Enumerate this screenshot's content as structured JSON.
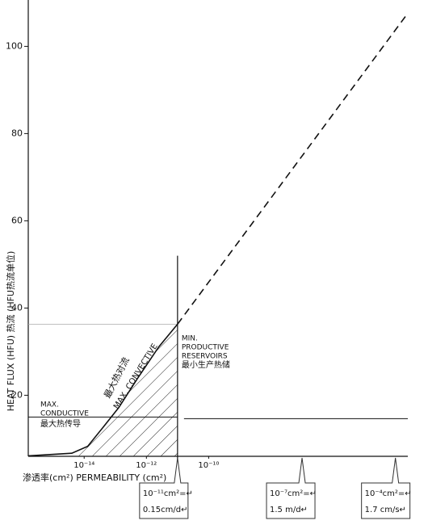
{
  "chart_data": {
    "type": "line",
    "x_label": "渗透率(cm²) PERMEABILITY (cm²)",
    "y_label": "HEAT FLUX (HFU) 热流 (HFU热流单位)",
    "x_log": true,
    "xlim": [
      1.6e-16,
      0.00025
    ],
    "ylim": [
      6,
      110
    ],
    "xticks": [
      {
        "value": 1e-14,
        "label": "10⁻¹⁴"
      },
      {
        "value": 1e-12,
        "label": "10⁻¹²"
      },
      {
        "value": 1e-10,
        "label": "10⁻¹⁰"
      }
    ],
    "yticks": [
      20,
      40,
      60,
      80,
      100
    ],
    "series": [
      {
        "color": "#111111",
        "style": "solid",
        "x": [
          1.6e-16,
          4e-15,
          1.3e-14,
          4e-14,
          1.3e-13,
          5e-13,
          2.5e-12,
          1e-11
        ],
        "values": [
          6.1,
          6.7,
          8.3,
          12.6,
          17.2,
          23.7,
          31.1,
          36.3
        ]
      },
      {
        "color": "#111111",
        "style": "dashed",
        "x": [
          1e-11,
          0.00025
        ],
        "values": [
          36.3,
          107.6
        ]
      }
    ],
    "conductive_level": 15,
    "min_productive": {
      "x": 1e-11,
      "top": 52
    },
    "annotations": [
      "最大热对流",
      "MAX. CONVECTIVE",
      "MIN.",
      "PRODUCTIVE",
      "RESERVOIRS",
      "最小生产热储",
      "MAX.",
      "CONDUCTIVE",
      "最大热传导"
    ],
    "callouts": [
      {
        "x": 1e-11,
        "lines": [
          "10⁻¹¹cm²=↵",
          "0.15cm/d↵"
        ]
      },
      {
        "x": 1e-07,
        "lines": [
          "10⁻⁷cm²=↵",
          "1.5 m/d↵"
        ]
      },
      {
        "x": 0.0001,
        "lines": [
          "10⁻⁴cm²=↵",
          "1.7 cm/s↵"
        ]
      }
    ]
  }
}
